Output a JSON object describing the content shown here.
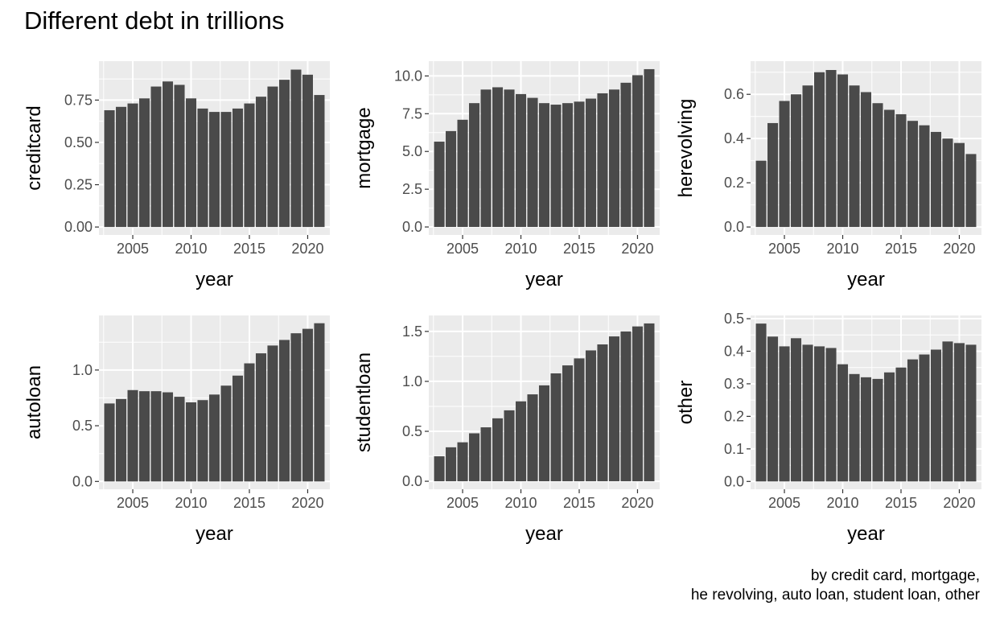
{
  "title": "Different debt in trillions",
  "caption_lines": [
    "by credit card, mortgage, ",
    "he revolving, auto loan, student loan, other"
  ],
  "colors": {
    "bar": "#4a4a4a",
    "panel": "#ebebeb",
    "grid": "#ffffff"
  },
  "chart_data": [
    {
      "type": "bar",
      "xlabel": "year",
      "ylabel": "creditcard",
      "x": [
        2003,
        2004,
        2005,
        2006,
        2007,
        2008,
        2009,
        2010,
        2011,
        2012,
        2013,
        2014,
        2015,
        2016,
        2017,
        2018,
        2019,
        2020,
        2021
      ],
      "values": [
        0.69,
        0.71,
        0.73,
        0.76,
        0.83,
        0.86,
        0.84,
        0.76,
        0.7,
        0.68,
        0.68,
        0.7,
        0.73,
        0.77,
        0.83,
        0.87,
        0.93,
        0.9,
        0.78
      ],
      "xticks": [
        2005,
        2010,
        2015,
        2020
      ],
      "yticks": [
        0.0,
        0.25,
        0.5,
        0.75
      ],
      "ytick_labels": [
        "0.00",
        "0.25",
        "0.50",
        "0.75"
      ],
      "ylim": [
        -0.047,
        0.98
      ],
      "xlim": [
        2002.1,
        2021.9
      ],
      "grid": true
    },
    {
      "type": "bar",
      "xlabel": "year",
      "ylabel": "mortgage",
      "x": [
        2003,
        2004,
        2005,
        2006,
        2007,
        2008,
        2009,
        2010,
        2011,
        2012,
        2013,
        2014,
        2015,
        2016,
        2017,
        2018,
        2019,
        2020,
        2021
      ],
      "values": [
        5.65,
        6.35,
        7.1,
        8.2,
        9.1,
        9.25,
        9.1,
        8.8,
        8.55,
        8.2,
        8.1,
        8.2,
        8.3,
        8.5,
        8.85,
        9.1,
        9.55,
        10.05,
        10.45
      ],
      "xticks": [
        2005,
        2010,
        2015,
        2020
      ],
      "yticks": [
        0.0,
        2.5,
        5.0,
        7.5,
        10.0
      ],
      "ytick_labels": [
        "0.0",
        "2.5",
        "5.0",
        "7.5",
        "10.0"
      ],
      "ylim": [
        -0.53,
        10.98
      ],
      "xlim": [
        2002.1,
        2021.9
      ],
      "grid": true
    },
    {
      "type": "bar",
      "xlabel": "year",
      "ylabel": "herevolving",
      "x": [
        2003,
        2004,
        2005,
        2006,
        2007,
        2008,
        2009,
        2010,
        2011,
        2012,
        2013,
        2014,
        2015,
        2016,
        2017,
        2018,
        2019,
        2020,
        2021
      ],
      "values": [
        0.3,
        0.47,
        0.57,
        0.6,
        0.64,
        0.7,
        0.71,
        0.69,
        0.64,
        0.61,
        0.56,
        0.53,
        0.51,
        0.48,
        0.46,
        0.43,
        0.4,
        0.38,
        0.33
      ],
      "xticks": [
        2005,
        2010,
        2015,
        2020
      ],
      "yticks": [
        0.0,
        0.2,
        0.4,
        0.6
      ],
      "ytick_labels": [
        "0.0",
        "0.2",
        "0.4",
        "0.6"
      ],
      "ylim": [
        -0.036,
        0.75
      ],
      "xlim": [
        2002.1,
        2021.9
      ],
      "grid": true
    },
    {
      "type": "bar",
      "xlabel": "year",
      "ylabel": "autoloan",
      "x": [
        2003,
        2004,
        2005,
        2006,
        2007,
        2008,
        2009,
        2010,
        2011,
        2012,
        2013,
        2014,
        2015,
        2016,
        2017,
        2018,
        2019,
        2020,
        2021
      ],
      "values": [
        0.7,
        0.74,
        0.82,
        0.81,
        0.81,
        0.8,
        0.76,
        0.71,
        0.73,
        0.78,
        0.86,
        0.95,
        1.06,
        1.15,
        1.22,
        1.27,
        1.33,
        1.37,
        1.42
      ],
      "xticks": [
        2005,
        2010,
        2015,
        2020
      ],
      "yticks": [
        0.0,
        0.5,
        1.0
      ],
      "ytick_labels": [
        "0.0",
        "0.5",
        "1.0"
      ],
      "ylim": [
        -0.07,
        1.49
      ],
      "xlim": [
        2002.1,
        2021.9
      ],
      "grid": true
    },
    {
      "type": "bar",
      "xlabel": "year",
      "ylabel": "studentloan",
      "x": [
        2003,
        2004,
        2005,
        2006,
        2007,
        2008,
        2009,
        2010,
        2011,
        2012,
        2013,
        2014,
        2015,
        2016,
        2017,
        2018,
        2019,
        2020,
        2021
      ],
      "values": [
        0.25,
        0.34,
        0.39,
        0.48,
        0.54,
        0.63,
        0.71,
        0.8,
        0.87,
        0.96,
        1.08,
        1.16,
        1.23,
        1.31,
        1.37,
        1.45,
        1.5,
        1.55,
        1.58
      ],
      "xticks": [
        2005,
        2010,
        2015,
        2020
      ],
      "yticks": [
        0.0,
        0.5,
        1.0,
        1.5
      ],
      "ytick_labels": [
        "0.0",
        "0.5",
        "1.0",
        "1.5"
      ],
      "ylim": [
        -0.08,
        1.66
      ],
      "xlim": [
        2002.1,
        2021.9
      ],
      "grid": true
    },
    {
      "type": "bar",
      "xlabel": "year",
      "ylabel": "other",
      "x": [
        2003,
        2004,
        2005,
        2006,
        2007,
        2008,
        2009,
        2010,
        2011,
        2012,
        2013,
        2014,
        2015,
        2016,
        2017,
        2018,
        2019,
        2020,
        2021
      ],
      "values": [
        0.485,
        0.445,
        0.415,
        0.44,
        0.42,
        0.415,
        0.41,
        0.36,
        0.33,
        0.32,
        0.315,
        0.335,
        0.35,
        0.375,
        0.39,
        0.405,
        0.43,
        0.425,
        0.42
      ],
      "xticks": [
        2005,
        2010,
        2015,
        2020
      ],
      "yticks": [
        0.0,
        0.1,
        0.2,
        0.3,
        0.4,
        0.5
      ],
      "ytick_labels": [
        "0.0",
        "0.1",
        "0.2",
        "0.3",
        "0.4",
        "0.5"
      ],
      "ylim": [
        -0.024,
        0.51
      ],
      "xlim": [
        2002.1,
        2021.9
      ],
      "grid": true
    }
  ]
}
